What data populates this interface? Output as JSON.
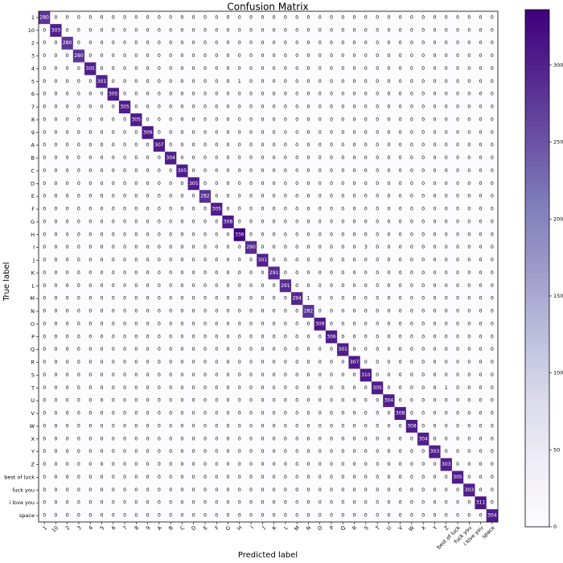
{
  "chart_data": {
    "type": "heatmap",
    "title": "Confusion Matrix",
    "x_label": "Predicted label",
    "y_label": "True label",
    "colormap": "Purples",
    "categories": [
      "1",
      "10",
      "2",
      "3",
      "4",
      "5",
      "6",
      "7",
      "8",
      "9",
      "A",
      "B",
      "C",
      "D",
      "E",
      "F",
      "G",
      "H",
      "I",
      "J",
      "K",
      "L",
      "M",
      "N",
      "O",
      "P",
      "Q",
      "R",
      "S",
      "T",
      "U",
      "V",
      "W",
      "X",
      "Y",
      "Z",
      "best of luck",
      "fuck you",
      "i love you",
      "space"
    ],
    "zlim": [
      0,
      336
    ],
    "zticks": [
      0,
      50,
      100,
      150,
      200,
      250,
      300
    ],
    "matrix": [
      [
        280,
        0,
        0,
        0,
        0,
        0,
        0,
        0,
        0,
        0,
        0,
        0,
        0,
        0,
        0,
        0,
        0,
        0,
        0,
        0,
        0,
        0,
        0,
        0,
        0,
        0,
        0,
        0,
        0,
        0,
        0,
        0,
        0,
        0,
        0,
        0,
        0,
        0,
        0,
        0
      ],
      [
        0,
        303,
        0,
        0,
        0,
        0,
        0,
        0,
        0,
        0,
        0,
        0,
        0,
        0,
        0,
        0,
        0,
        0,
        0,
        0,
        0,
        0,
        0,
        0,
        0,
        0,
        0,
        0,
        0,
        0,
        0,
        0,
        0,
        0,
        0,
        0,
        0,
        0,
        0,
        0
      ],
      [
        0,
        0,
        280,
        0,
        0,
        0,
        0,
        0,
        0,
        0,
        0,
        0,
        0,
        0,
        0,
        0,
        0,
        0,
        0,
        0,
        0,
        0,
        0,
        0,
        0,
        0,
        0,
        0,
        0,
        0,
        0,
        0,
        0,
        0,
        0,
        0,
        0,
        0,
        0,
        0
      ],
      [
        0,
        0,
        0,
        280,
        0,
        0,
        0,
        0,
        0,
        0,
        0,
        0,
        0,
        0,
        0,
        0,
        0,
        0,
        0,
        0,
        0,
        0,
        0,
        0,
        0,
        0,
        0,
        0,
        0,
        0,
        0,
        0,
        0,
        0,
        0,
        0,
        0,
        0,
        0,
        0
      ],
      [
        0,
        0,
        0,
        0,
        305,
        0,
        0,
        0,
        0,
        0,
        0,
        0,
        0,
        0,
        0,
        0,
        0,
        0,
        0,
        0,
        0,
        0,
        0,
        0,
        0,
        0,
        0,
        0,
        0,
        0,
        0,
        0,
        0,
        0,
        0,
        0,
        0,
        0,
        0,
        0
      ],
      [
        0,
        0,
        0,
        0,
        0,
        301,
        0,
        0,
        0,
        0,
        0,
        0,
        0,
        0,
        0,
        0,
        0,
        1,
        0,
        0,
        0,
        0,
        0,
        0,
        0,
        0,
        0,
        0,
        0,
        0,
        0,
        0,
        0,
        0,
        0,
        0,
        0,
        0,
        0,
        0
      ],
      [
        0,
        0,
        0,
        0,
        0,
        0,
        305,
        0,
        0,
        0,
        0,
        0,
        0,
        0,
        0,
        0,
        0,
        0,
        0,
        0,
        0,
        0,
        0,
        0,
        0,
        0,
        0,
        0,
        0,
        0,
        0,
        0,
        0,
        0,
        0,
        0,
        0,
        0,
        0,
        0
      ],
      [
        0,
        0,
        0,
        0,
        0,
        0,
        0,
        305,
        0,
        0,
        0,
        0,
        0,
        0,
        0,
        0,
        0,
        0,
        0,
        0,
        0,
        0,
        0,
        0,
        0,
        0,
        0,
        0,
        0,
        0,
        0,
        0,
        0,
        0,
        0,
        0,
        0,
        0,
        0,
        0
      ],
      [
        0,
        0,
        0,
        0,
        0,
        0,
        0,
        0,
        305,
        0,
        0,
        0,
        0,
        0,
        0,
        0,
        0,
        0,
        0,
        0,
        0,
        0,
        0,
        0,
        0,
        0,
        0,
        0,
        0,
        0,
        0,
        0,
        0,
        0,
        0,
        0,
        0,
        0,
        0,
        0
      ],
      [
        0,
        0,
        0,
        0,
        0,
        0,
        0,
        0,
        0,
        309,
        0,
        0,
        0,
        0,
        0,
        0,
        0,
        0,
        0,
        0,
        0,
        0,
        0,
        0,
        0,
        0,
        0,
        0,
        0,
        0,
        0,
        0,
        0,
        0,
        0,
        0,
        0,
        0,
        0,
        0
      ],
      [
        0,
        0,
        0,
        0,
        0,
        0,
        0,
        0,
        0,
        0,
        307,
        0,
        0,
        0,
        0,
        0,
        0,
        0,
        0,
        0,
        0,
        0,
        0,
        0,
        0,
        0,
        0,
        0,
        0,
        0,
        0,
        0,
        0,
        0,
        0,
        0,
        0,
        0,
        0,
        0
      ],
      [
        0,
        0,
        0,
        0,
        0,
        0,
        0,
        0,
        0,
        0,
        0,
        304,
        0,
        0,
        0,
        0,
        0,
        0,
        0,
        0,
        0,
        0,
        0,
        0,
        0,
        0,
        0,
        0,
        0,
        0,
        0,
        0,
        0,
        0,
        0,
        0,
        0,
        0,
        0,
        0
      ],
      [
        0,
        0,
        0,
        0,
        0,
        0,
        0,
        0,
        0,
        0,
        0,
        0,
        305,
        0,
        0,
        0,
        0,
        0,
        0,
        0,
        0,
        0,
        0,
        0,
        0,
        0,
        0,
        0,
        0,
        0,
        0,
        0,
        0,
        0,
        0,
        0,
        0,
        0,
        0,
        0
      ],
      [
        0,
        0,
        0,
        0,
        0,
        0,
        0,
        0,
        0,
        0,
        0,
        0,
        0,
        305,
        0,
        0,
        0,
        0,
        0,
        0,
        0,
        0,
        0,
        0,
        0,
        0,
        0,
        0,
        0,
        0,
        0,
        0,
        0,
        0,
        0,
        0,
        0,
        0,
        0,
        0
      ],
      [
        0,
        0,
        0,
        0,
        0,
        0,
        0,
        0,
        0,
        0,
        0,
        0,
        0,
        0,
        282,
        0,
        0,
        0,
        0,
        0,
        0,
        0,
        0,
        0,
        0,
        0,
        0,
        0,
        0,
        0,
        0,
        0,
        0,
        0,
        0,
        0,
        0,
        0,
        0,
        0
      ],
      [
        0,
        0,
        0,
        0,
        0,
        0,
        0,
        0,
        0,
        0,
        0,
        0,
        0,
        0,
        0,
        305,
        0,
        0,
        0,
        0,
        0,
        0,
        0,
        0,
        0,
        0,
        0,
        0,
        0,
        0,
        0,
        0,
        0,
        0,
        0,
        0,
        0,
        0,
        0,
        0
      ],
      [
        0,
        0,
        0,
        0,
        0,
        0,
        0,
        0,
        0,
        0,
        0,
        0,
        0,
        0,
        0,
        0,
        308,
        0,
        0,
        0,
        0,
        0,
        0,
        0,
        0,
        0,
        0,
        0,
        0,
        0,
        0,
        0,
        0,
        0,
        0,
        0,
        0,
        0,
        0,
        0
      ],
      [
        0,
        0,
        0,
        0,
        0,
        0,
        0,
        0,
        0,
        0,
        0,
        0,
        0,
        0,
        0,
        0,
        0,
        336,
        0,
        0,
        0,
        0,
        0,
        0,
        0,
        0,
        0,
        0,
        0,
        0,
        0,
        0,
        0,
        0,
        0,
        0,
        0,
        0,
        0,
        0
      ],
      [
        0,
        0,
        0,
        0,
        0,
        0,
        0,
        0,
        0,
        0,
        0,
        0,
        0,
        0,
        0,
        0,
        0,
        0,
        290,
        0,
        0,
        0,
        0,
        0,
        0,
        0,
        0,
        0,
        3,
        0,
        0,
        0,
        0,
        0,
        0,
        0,
        0,
        0,
        0,
        0
      ],
      [
        0,
        0,
        0,
        0,
        0,
        0,
        0,
        0,
        0,
        0,
        0,
        0,
        0,
        0,
        0,
        0,
        0,
        0,
        0,
        301,
        0,
        0,
        0,
        0,
        0,
        0,
        0,
        0,
        0,
        0,
        0,
        0,
        0,
        0,
        0,
        0,
        0,
        0,
        0,
        0
      ],
      [
        0,
        0,
        0,
        0,
        0,
        0,
        0,
        0,
        0,
        0,
        0,
        0,
        0,
        0,
        0,
        0,
        0,
        0,
        0,
        0,
        291,
        0,
        0,
        0,
        0,
        0,
        0,
        0,
        0,
        0,
        0,
        0,
        0,
        0,
        0,
        0,
        0,
        0,
        0,
        0
      ],
      [
        0,
        0,
        0,
        0,
        0,
        0,
        0,
        0,
        0,
        0,
        0,
        0,
        0,
        0,
        0,
        0,
        0,
        0,
        0,
        0,
        0,
        291,
        0,
        0,
        0,
        0,
        0,
        0,
        0,
        0,
        0,
        0,
        0,
        0,
        0,
        0,
        0,
        0,
        0,
        0
      ],
      [
        0,
        0,
        0,
        0,
        0,
        0,
        0,
        0,
        0,
        0,
        0,
        0,
        0,
        0,
        0,
        0,
        0,
        0,
        0,
        0,
        0,
        0,
        294,
        1,
        0,
        0,
        0,
        0,
        0,
        0,
        0,
        0,
        0,
        0,
        0,
        0,
        0,
        0,
        0,
        0
      ],
      [
        0,
        0,
        0,
        0,
        0,
        0,
        0,
        0,
        0,
        0,
        0,
        0,
        0,
        0,
        0,
        0,
        0,
        0,
        0,
        0,
        0,
        0,
        0,
        282,
        0,
        0,
        0,
        0,
        0,
        0,
        0,
        0,
        0,
        0,
        0,
        0,
        0,
        0,
        0,
        0
      ],
      [
        0,
        0,
        0,
        0,
        0,
        0,
        0,
        0,
        0,
        0,
        0,
        0,
        0,
        0,
        0,
        0,
        0,
        0,
        0,
        0,
        0,
        0,
        0,
        0,
        309,
        0,
        0,
        0,
        0,
        0,
        0,
        0,
        0,
        0,
        0,
        0,
        0,
        0,
        0,
        0
      ],
      [
        0,
        0,
        0,
        0,
        0,
        0,
        0,
        0,
        0,
        0,
        0,
        0,
        0,
        0,
        0,
        0,
        0,
        0,
        0,
        0,
        0,
        0,
        0,
        0,
        0,
        306,
        0,
        0,
        0,
        0,
        0,
        0,
        0,
        0,
        0,
        0,
        0,
        0,
        0,
        0
      ],
      [
        0,
        0,
        0,
        0,
        0,
        0,
        0,
        0,
        0,
        0,
        0,
        0,
        0,
        0,
        0,
        0,
        0,
        0,
        0,
        0,
        0,
        0,
        0,
        0,
        0,
        0,
        301,
        0,
        0,
        0,
        0,
        0,
        0,
        0,
        0,
        0,
        0,
        0,
        0,
        0
      ],
      [
        0,
        0,
        0,
        0,
        0,
        0,
        0,
        0,
        0,
        0,
        0,
        0,
        0,
        0,
        0,
        0,
        0,
        0,
        0,
        0,
        0,
        0,
        0,
        0,
        0,
        0,
        0,
        307,
        0,
        0,
        0,
        0,
        0,
        0,
        0,
        0,
        0,
        0,
        0,
        0
      ],
      [
        0,
        0,
        0,
        0,
        0,
        0,
        0,
        0,
        0,
        0,
        0,
        0,
        0,
        0,
        0,
        0,
        0,
        0,
        0,
        0,
        0,
        0,
        0,
        0,
        0,
        0,
        0,
        0,
        310,
        0,
        0,
        0,
        0,
        0,
        0,
        0,
        0,
        0,
        0,
        0
      ],
      [
        0,
        0,
        0,
        0,
        0,
        0,
        0,
        0,
        0,
        0,
        0,
        0,
        0,
        0,
        0,
        0,
        0,
        0,
        0,
        0,
        0,
        0,
        0,
        0,
        0,
        0,
        0,
        0,
        0,
        305,
        0,
        0,
        0,
        0,
        0,
        1,
        0,
        0,
        0,
        0
      ],
      [
        0,
        0,
        0,
        0,
        0,
        0,
        0,
        0,
        0,
        0,
        0,
        0,
        0,
        0,
        0,
        0,
        0,
        0,
        0,
        0,
        0,
        0,
        0,
        0,
        0,
        0,
        0,
        0,
        0,
        0,
        304,
        0,
        0,
        0,
        0,
        0,
        0,
        0,
        0,
        0
      ],
      [
        0,
        0,
        0,
        0,
        0,
        0,
        0,
        0,
        0,
        0,
        0,
        0,
        0,
        0,
        0,
        0,
        0,
        0,
        0,
        0,
        0,
        0,
        0,
        0,
        0,
        0,
        0,
        0,
        0,
        0,
        0,
        308,
        0,
        0,
        0,
        0,
        0,
        0,
        0,
        0
      ],
      [
        0,
        0,
        0,
        0,
        0,
        0,
        0,
        0,
        0,
        0,
        0,
        0,
        0,
        0,
        0,
        0,
        0,
        0,
        0,
        0,
        0,
        0,
        0,
        0,
        0,
        0,
        0,
        0,
        0,
        0,
        0,
        0,
        308,
        0,
        0,
        0,
        0,
        0,
        0,
        0
      ],
      [
        0,
        0,
        0,
        0,
        0,
        0,
        0,
        0,
        0,
        0,
        0,
        0,
        0,
        0,
        0,
        0,
        0,
        0,
        0,
        0,
        0,
        0,
        0,
        0,
        0,
        0,
        0,
        0,
        0,
        0,
        0,
        0,
        0,
        304,
        0,
        0,
        0,
        0,
        0,
        0
      ],
      [
        0,
        0,
        0,
        0,
        0,
        0,
        0,
        0,
        0,
        0,
        0,
        0,
        0,
        0,
        0,
        0,
        0,
        0,
        0,
        0,
        0,
        0,
        0,
        0,
        0,
        0,
        0,
        0,
        0,
        0,
        0,
        0,
        0,
        0,
        303,
        0,
        0,
        0,
        0,
        0
      ],
      [
        0,
        0,
        0,
        0,
        0,
        0,
        0,
        0,
        0,
        0,
        0,
        0,
        0,
        0,
        0,
        0,
        0,
        0,
        0,
        0,
        0,
        0,
        0,
        0,
        0,
        0,
        0,
        0,
        0,
        0,
        0,
        0,
        0,
        0,
        0,
        303,
        0,
        0,
        0,
        0
      ],
      [
        0,
        0,
        0,
        0,
        0,
        0,
        0,
        0,
        0,
        0,
        0,
        0,
        0,
        0,
        0,
        0,
        0,
        0,
        0,
        0,
        0,
        0,
        0,
        0,
        0,
        0,
        0,
        0,
        0,
        0,
        0,
        0,
        0,
        0,
        0,
        0,
        305,
        0,
        0,
        0
      ],
      [
        0,
        0,
        0,
        0,
        0,
        0,
        0,
        0,
        0,
        0,
        0,
        0,
        0,
        0,
        0,
        0,
        0,
        0,
        0,
        0,
        0,
        0,
        0,
        0,
        0,
        0,
        0,
        0,
        0,
        0,
        0,
        0,
        0,
        0,
        0,
        0,
        0,
        303,
        0,
        0
      ],
      [
        0,
        0,
        0,
        0,
        0,
        0,
        0,
        0,
        0,
        0,
        0,
        0,
        0,
        0,
        0,
        0,
        0,
        0,
        0,
        0,
        0,
        0,
        0,
        0,
        0,
        0,
        0,
        0,
        0,
        0,
        0,
        0,
        0,
        0,
        0,
        0,
        0,
        0,
        311,
        0
      ],
      [
        0,
        0,
        0,
        0,
        0,
        0,
        0,
        0,
        0,
        0,
        0,
        0,
        0,
        0,
        0,
        0,
        0,
        0,
        0,
        0,
        0,
        0,
        0,
        0,
        0,
        0,
        0,
        0,
        0,
        0,
        0,
        0,
        0,
        0,
        0,
        0,
        0,
        0,
        0,
        304
      ]
    ]
  }
}
